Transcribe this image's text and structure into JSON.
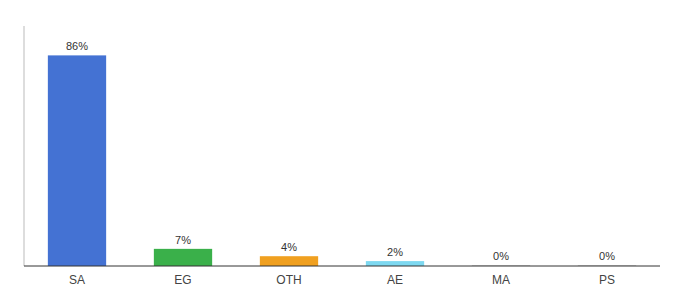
{
  "chart_data": {
    "type": "bar",
    "categories": [
      "SA",
      "EG",
      "OTH",
      "AE",
      "MA",
      "PS"
    ],
    "values": [
      86,
      7,
      4,
      2,
      0.3,
      0.3
    ],
    "value_labels": [
      "86%",
      "7%",
      "4%",
      "2%",
      "0%",
      "0%"
    ],
    "colors": [
      "#4472d3",
      "#3ab04a",
      "#f0a020",
      "#7dd8f0",
      "#c8c8c8",
      "#c8c8c8"
    ],
    "ylim": [
      0,
      98
    ],
    "grid": false,
    "data_labels": true,
    "tick_labels": "x"
  }
}
